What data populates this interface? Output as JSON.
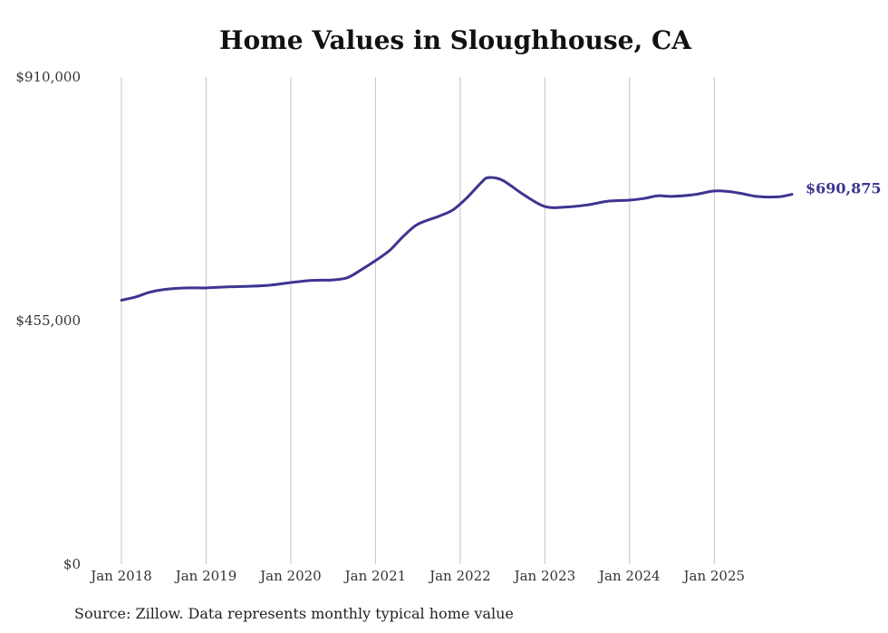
{
  "chart_data": {
    "type": "line",
    "title": "Home Values in Sloughhouse, CA",
    "xlabel": "",
    "ylabel": "",
    "ylim": [
      0,
      910000
    ],
    "y_ticks": [
      {
        "value": 0,
        "label": "$0"
      },
      {
        "value": 455000,
        "label": "$455,000"
      },
      {
        "value": 910000,
        "label": "$910,000"
      }
    ],
    "x_ticks": [
      {
        "value": 2018.0,
        "label": "Jan 2018"
      },
      {
        "value": 2019.0,
        "label": "Jan 2019"
      },
      {
        "value": 2020.0,
        "label": "Jan 2020"
      },
      {
        "value": 2021.0,
        "label": "Jan 2021"
      },
      {
        "value": 2022.0,
        "label": "Jan 2022"
      },
      {
        "value": 2023.0,
        "label": "Jan 2023"
      },
      {
        "value": 2024.0,
        "label": "Jan 2024"
      },
      {
        "value": 2025.0,
        "label": "Jan 2025"
      }
    ],
    "xlim": [
      2018.0,
      2025.917
    ],
    "grid": {
      "vertical": true,
      "horizontal": false
    },
    "series": [
      {
        "name": "Typical home value",
        "color": "#3d3590",
        "end_label": "$690,875",
        "points": [
          {
            "x": 2018.0,
            "y": 493000
          },
          {
            "x": 2018.167,
            "y": 499000
          },
          {
            "x": 2018.333,
            "y": 508000
          },
          {
            "x": 2018.5,
            "y": 513000
          },
          {
            "x": 2018.75,
            "y": 516000
          },
          {
            "x": 2019.0,
            "y": 516000
          },
          {
            "x": 2019.25,
            "y": 518000
          },
          {
            "x": 2019.5,
            "y": 519000
          },
          {
            "x": 2019.75,
            "y": 521000
          },
          {
            "x": 2020.0,
            "y": 526000
          },
          {
            "x": 2020.25,
            "y": 530000
          },
          {
            "x": 2020.5,
            "y": 531000
          },
          {
            "x": 2020.667,
            "y": 535000
          },
          {
            "x": 2020.833,
            "y": 550000
          },
          {
            "x": 2021.0,
            "y": 567000
          },
          {
            "x": 2021.167,
            "y": 586000
          },
          {
            "x": 2021.333,
            "y": 613000
          },
          {
            "x": 2021.5,
            "y": 635000
          },
          {
            "x": 2021.75,
            "y": 650000
          },
          {
            "x": 2021.917,
            "y": 662000
          },
          {
            "x": 2022.083,
            "y": 685000
          },
          {
            "x": 2022.25,
            "y": 713000
          },
          {
            "x": 2022.333,
            "y": 722000
          },
          {
            "x": 2022.5,
            "y": 717000
          },
          {
            "x": 2022.75,
            "y": 690000
          },
          {
            "x": 2023.0,
            "y": 668000
          },
          {
            "x": 2023.25,
            "y": 667000
          },
          {
            "x": 2023.5,
            "y": 671000
          },
          {
            "x": 2023.75,
            "y": 678000
          },
          {
            "x": 2024.0,
            "y": 680000
          },
          {
            "x": 2024.167,
            "y": 683000
          },
          {
            "x": 2024.333,
            "y": 688000
          },
          {
            "x": 2024.5,
            "y": 687000
          },
          {
            "x": 2024.75,
            "y": 690000
          },
          {
            "x": 2025.0,
            "y": 697000
          },
          {
            "x": 2025.167,
            "y": 696000
          },
          {
            "x": 2025.333,
            "y": 692000
          },
          {
            "x": 2025.5,
            "y": 687000
          },
          {
            "x": 2025.75,
            "y": 686000
          },
          {
            "x": 2025.917,
            "y": 690875
          }
        ]
      }
    ],
    "source": "Source: Zillow. Data represents monthly typical home value"
  }
}
